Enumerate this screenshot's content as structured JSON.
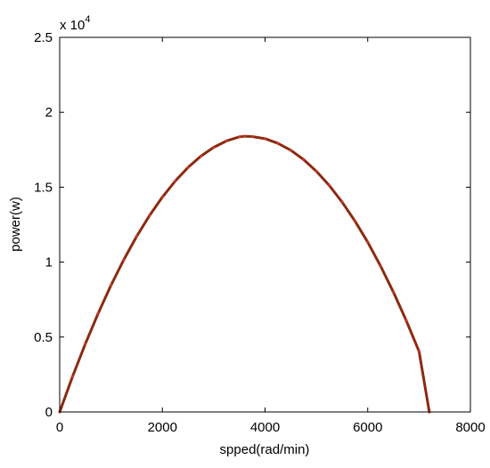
{
  "chart_data": {
    "type": "line",
    "title": "",
    "xlabel": "spped(rad/min)",
    "ylabel": "power(w)",
    "xlim": [
      0,
      8000
    ],
    "ylim": [
      0,
      2.5
    ],
    "y_multiplier_label": "x 10",
    "y_multiplier_exponent": "4",
    "xticks": [
      0,
      2000,
      4000,
      6000,
      8000
    ],
    "xtick_labels": [
      "0",
      "2000",
      "4000",
      "6000",
      "8000"
    ],
    "yticks": [
      0,
      0.5,
      1,
      1.5,
      2,
      2.5
    ],
    "ytick_labels": [
      "0",
      "0.5",
      "1",
      "1.5",
      "2",
      "2.5"
    ],
    "grid": false,
    "series": [
      {
        "color": "#8b2a10",
        "marker_color": "#c0392b",
        "x": [
          0,
          250,
          500,
          750,
          1000,
          1250,
          1500,
          1750,
          2000,
          2250,
          2500,
          2750,
          3000,
          3250,
          3500,
          3600,
          3750,
          4000,
          4250,
          4500,
          4750,
          5000,
          5250,
          5500,
          5750,
          6000,
          6250,
          6500,
          6750,
          7000,
          7200
        ],
        "y": [
          0,
          0.236,
          0.455,
          0.658,
          0.846,
          1.017,
          1.172,
          1.311,
          1.434,
          1.541,
          1.632,
          1.707,
          1.766,
          1.809,
          1.836,
          1.84,
          1.838,
          1.824,
          1.793,
          1.747,
          1.685,
          1.606,
          1.512,
          1.401,
          1.275,
          1.133,
          0.974,
          0.8,
          0.61,
          0.404,
          0.0
        ]
      }
    ]
  }
}
